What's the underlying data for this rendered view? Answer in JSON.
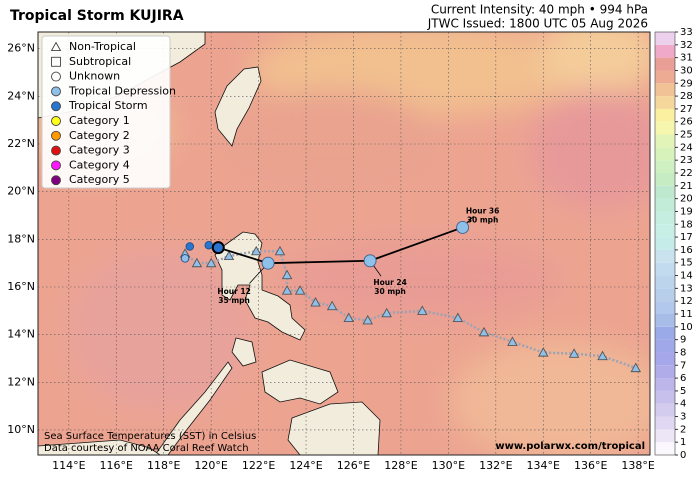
{
  "header": {
    "title": "Tropical Storm KUJIRA",
    "intensity": "Current Intensity: 40 mph • 994 hPa",
    "issued": "JTWC Issued: 1800 UTC 05 Aug 2026"
  },
  "map": {
    "lonlim": [
      112.7,
      138.5
    ],
    "latlim": [
      8.95,
      26.7
    ],
    "lonticks": [
      {
        "value": 114,
        "label": "114°E"
      },
      {
        "value": 116,
        "label": "116°E"
      },
      {
        "value": 118,
        "label": "118°E"
      },
      {
        "value": 120,
        "label": "120°E"
      },
      {
        "value": 122,
        "label": "122°E"
      },
      {
        "value": 124,
        "label": "124°E"
      },
      {
        "value": 126,
        "label": "126°E"
      },
      {
        "value": 128,
        "label": "128°E"
      },
      {
        "value": 130,
        "label": "130°E"
      },
      {
        "value": 132,
        "label": "132°E"
      },
      {
        "value": 134,
        "label": "134°E"
      },
      {
        "value": 136,
        "label": "136°E"
      },
      {
        "value": 138,
        "label": "138°E"
      }
    ],
    "latticks": [
      {
        "value": 10,
        "label": "10°N"
      },
      {
        "value": 12,
        "label": "12°N"
      },
      {
        "value": 14,
        "label": "14°N"
      },
      {
        "value": 16,
        "label": "16°N"
      },
      {
        "value": 18,
        "label": "18°N"
      },
      {
        "value": 20,
        "label": "20°N"
      },
      {
        "value": 22,
        "label": "22°N"
      },
      {
        "value": 24,
        "label": "24°N"
      },
      {
        "value": 26,
        "label": "26°N"
      }
    ],
    "grid": true
  },
  "legend": [
    {
      "label": "Non-Tropical",
      "marker": "triangle",
      "color": "#ffffff"
    },
    {
      "label": "Subtropical",
      "marker": "square",
      "color": "#ffffff"
    },
    {
      "label": "Unknown",
      "marker": "circle",
      "color": "#ffffff"
    },
    {
      "label": "Tropical Depression",
      "marker": "circle",
      "color": "#8fc0ea"
    },
    {
      "label": "Tropical Storm",
      "marker": "circle",
      "color": "#2a76cf"
    },
    {
      "label": "Category 1",
      "marker": "circle",
      "color": "#ffff1a"
    },
    {
      "label": "Category 2",
      "marker": "circle",
      "color": "#ff9a00"
    },
    {
      "label": "Category 3",
      "marker": "circle",
      "color": "#e01010"
    },
    {
      "label": "Category 4",
      "marker": "circle",
      "color": "#ff19ff"
    },
    {
      "label": "Category 5",
      "marker": "circle",
      "color": "#800080"
    }
  ],
  "past_track": [
    {
      "lon": 118.9,
      "lat": 17.2,
      "color": "#8fc0ea"
    },
    {
      "lon": 119.1,
      "lat": 17.7,
      "color": "#2a76cf"
    },
    {
      "lon": 119.9,
      "lat": 17.75,
      "color": "#2a76cf"
    }
  ],
  "current": {
    "lon": 120.3,
    "lat": 17.65,
    "color": "#2a76cf"
  },
  "forecast": [
    {
      "lon": 122.4,
      "lat": 17.0,
      "color": "#8fc0ea",
      "hour": "Hour 12",
      "wind": "35 mph"
    },
    {
      "lon": 126.7,
      "lat": 17.1,
      "color": "#8fc0ea",
      "hour": "Hour 24",
      "wind": "30 mph"
    },
    {
      "lon": 130.6,
      "lat": 18.5,
      "color": "#8fc0ea",
      "hour": "Hour 36",
      "wind": "30 mph"
    }
  ],
  "ensemble": {
    "color": "#8fc0ea",
    "lon": [
      118.9,
      119.4,
      120.0,
      120.75,
      121.9,
      122.9,
      123.2,
      123.2,
      123.75,
      124.4,
      125.1,
      125.8,
      126.6,
      127.4,
      128.9,
      130.4,
      131.5,
      132.7,
      134.0,
      135.3,
      136.5,
      137.9
    ],
    "lat": [
      17.4,
      17.0,
      17.0,
      17.3,
      17.5,
      17.5,
      16.5,
      15.85,
      15.85,
      15.35,
      15.2,
      14.7,
      14.6,
      14.9,
      15.0,
      14.7,
      14.1,
      13.7,
      13.25,
      13.2,
      13.1,
      12.6
    ]
  },
  "colorbar": {
    "range": [
      0,
      33
    ],
    "ticks": [
      0,
      1,
      2,
      3,
      4,
      5,
      6,
      7,
      8,
      9,
      10,
      11,
      12,
      13,
      14,
      15,
      16,
      17,
      18,
      19,
      20,
      21,
      22,
      23,
      24,
      25,
      26,
      27,
      28,
      29,
      30,
      31,
      32,
      33
    ],
    "colors": [
      "#fbf8fd",
      "#ece6f6",
      "#e0d8f2",
      "#d4ccee",
      "#c8c0ec",
      "#bcb6ea",
      "#b0acea",
      "#a6a6ea",
      "#a0a8ea",
      "#9aaae8",
      "#a8bce8",
      "#b2c8ec",
      "#b8cfec",
      "#bcd4ec",
      "#c2dbee",
      "#c8e2ee",
      "#c6ecea",
      "#c8efe6",
      "#c6eee0",
      "#c2ecd8",
      "#bfe9cf",
      "#c6ecc4",
      "#cff0c0",
      "#d8f2bc",
      "#e2f4b8",
      "#f6f7ae",
      "#fbf0a0",
      "#f5d79c",
      "#f0c296",
      "#ecab92",
      "#e99e96",
      "#f0a9c8",
      "#ecd0ec"
    ]
  },
  "notes": {
    "sst": "Sea Surface Temperatures (SST) in Celsius",
    "source": "Data courtesy of NOAA Coral Reef Watch",
    "url": "www.polarwx.com/tropical"
  }
}
